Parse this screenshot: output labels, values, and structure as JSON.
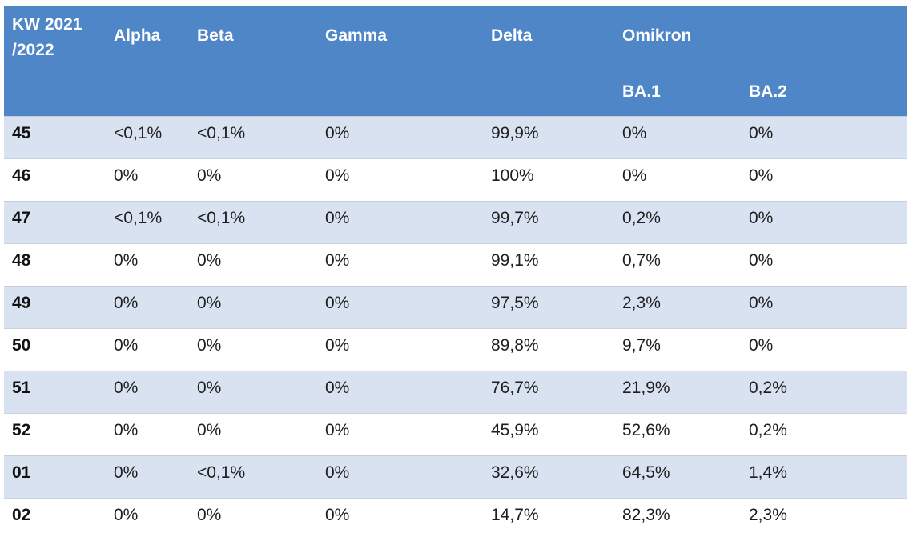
{
  "header": {
    "week_line1": "KW 2021",
    "week_line2": "/2022",
    "alpha": "Alpha",
    "beta": "Beta",
    "gamma": "Gamma",
    "delta": "Delta",
    "omikron": "Omikron",
    "ba1": "BA.1",
    "ba2": "BA.2"
  },
  "colors": {
    "header_bg": "#4e86c8",
    "band_bg": "#d9e2f1",
    "header_text": "#ffffff",
    "body_text": "#1e1e1e"
  },
  "chart_data": {
    "type": "table",
    "columns": [
      "KW 2021/2022",
      "Alpha",
      "Beta",
      "Gamma",
      "Delta",
      "Omikron BA.1",
      "Omikron BA.2"
    ],
    "rows": [
      [
        "45",
        "<0,1%",
        "<0,1%",
        "0%",
        "99,9%",
        "0%",
        "0%"
      ],
      [
        "46",
        "0%",
        "0%",
        "0%",
        "100%",
        "0%",
        "0%"
      ],
      [
        "47",
        "<0,1%",
        "<0,1%",
        "0%",
        "99,7%",
        "0,2%",
        "0%"
      ],
      [
        "48",
        "0%",
        "0%",
        "0%",
        "99,1%",
        "0,7%",
        "0%"
      ],
      [
        "49",
        "0%",
        "0%",
        "0%",
        "97,5%",
        "2,3%",
        "0%"
      ],
      [
        "50",
        "0%",
        "0%",
        "0%",
        "89,8%",
        "9,7%",
        "0%"
      ],
      [
        "51",
        "0%",
        "0%",
        "0%",
        "76,7%",
        "21,9%",
        "0,2%"
      ],
      [
        "52",
        "0%",
        "0%",
        "0%",
        "45,9%",
        "52,6%",
        "0,2%"
      ],
      [
        "01",
        "0%",
        "<0,1%",
        "0%",
        "32,6%",
        "64,5%",
        "1,4%"
      ],
      [
        "02",
        "0%",
        "0%",
        "0%",
        "14,7%",
        "82,3%",
        "2,3%"
      ]
    ]
  }
}
